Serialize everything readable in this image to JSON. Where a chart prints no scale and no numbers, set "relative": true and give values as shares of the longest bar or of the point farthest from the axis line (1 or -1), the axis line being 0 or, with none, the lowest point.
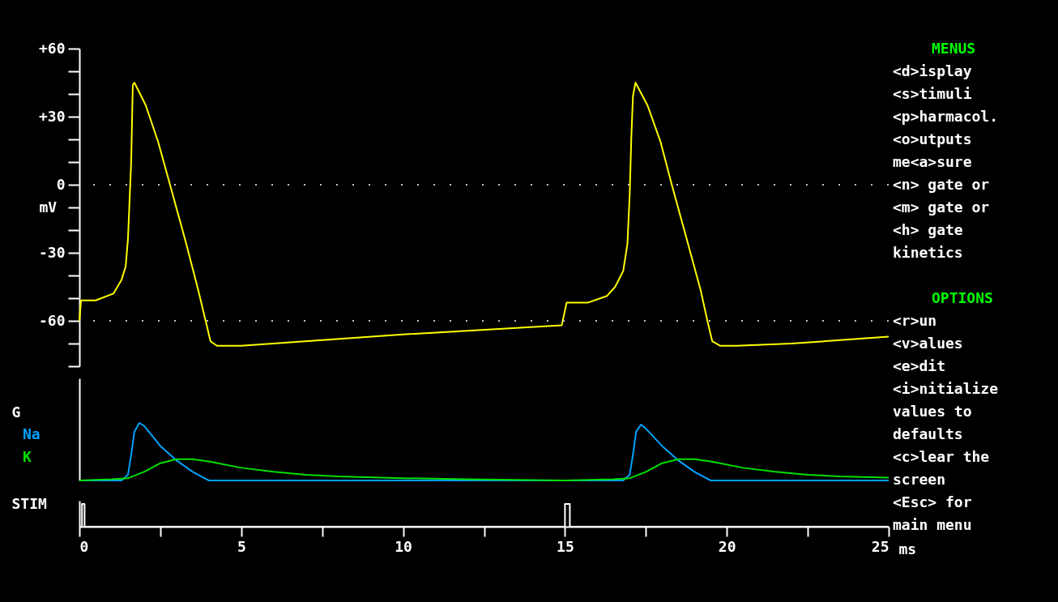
{
  "chart_data": [
    {
      "type": "line",
      "ylabel": "mV",
      "xlim": [
        0,
        25
      ],
      "ylim": [
        -80,
        60
      ],
      "tick_labels": "y",
      "grid": false,
      "marker": "none",
      "yticks": [
        {
          "value": 60,
          "label": "+60"
        },
        {
          "value": 50,
          "label": null
        },
        {
          "value": 40,
          "label": null
        },
        {
          "value": 30,
          "label": "+30"
        },
        {
          "value": 20,
          "label": null
        },
        {
          "value": 10,
          "label": null
        },
        0,
        {
          "value": -10,
          "label": null
        },
        {
          "value": -20,
          "label": null
        },
        -30,
        {
          "value": -40,
          "label": null
        },
        {
          "value": -50,
          "label": null
        },
        -60,
        {
          "value": -70,
          "label": null
        },
        {
          "value": -80,
          "label": null
        }
      ],
      "ref_lines": [
        {
          "axis": "y",
          "value": 0,
          "color": "#c0c0c0",
          "line_style": "dotted"
        },
        {
          "axis": "y",
          "value": -60,
          "color": "#c0c0c0",
          "line_style": "dotted"
        }
      ],
      "series": [
        {
          "color": "#ffff00",
          "x": [
            0,
            0.05,
            0.5,
            1.05,
            1.3,
            1.43,
            1.5,
            1.55,
            1.6,
            1.63,
            1.65,
            1.7,
            2.05,
            2.43,
            2.8,
            3.3,
            3.68,
            3.9,
            4.05,
            4.25,
            5,
            10,
            14.9,
            15.05,
            15.7,
            16.3,
            16.55,
            16.8,
            16.93,
            17.0,
            17.05,
            17.1,
            17.18,
            17.55,
            17.95,
            18.3,
            18.8,
            19.2,
            19.4,
            19.55,
            19.8,
            20.3,
            22,
            25
          ],
          "values": [
            -60,
            -51,
            -51,
            -48,
            -42,
            -36,
            -24,
            -7,
            10,
            31,
            44,
            45,
            35,
            19,
            0,
            -26,
            -47,
            -60,
            -69,
            -71,
            -71,
            -66,
            -62,
            -52,
            -52,
            -49,
            -45,
            -38,
            -26,
            -4,
            21,
            39,
            45,
            35,
            19,
            0,
            -26,
            -47,
            -60,
            -69,
            -71,
            -71,
            -70,
            -67
          ]
        }
      ]
    },
    {
      "type": "line",
      "ylabel": "G",
      "xlim": [
        0,
        25
      ],
      "relative": true,
      "tick_labels": false,
      "series": [
        {
          "name": "Na",
          "color": "#00a2ff",
          "x": [
            0,
            1.3,
            1.5,
            1.6,
            1.7,
            1.85,
            2.0,
            2.5,
            3.0,
            3.5,
            4.0,
            15,
            16.8,
            17.0,
            17.1,
            17.2,
            17.35,
            17.5,
            18.0,
            18.5,
            19.0,
            19.5,
            25
          ],
          "values": [
            0,
            0,
            0.1,
            0.45,
            0.85,
            1,
            0.95,
            0.6,
            0.35,
            0.15,
            0,
            0,
            0,
            0.1,
            0.45,
            0.85,
            0.97,
            0.9,
            0.6,
            0.35,
            0.15,
            0,
            0
          ]
        },
        {
          "name": "K",
          "color": "#00e000",
          "x": [
            0,
            1.0,
            1.5,
            2.0,
            2.5,
            3.0,
            3.5,
            4.0,
            5.0,
            6.0,
            7.0,
            8.0,
            10.0,
            12.0,
            15.0,
            16.5,
            17.0,
            17.5,
            18.0,
            18.5,
            19.0,
            19.5,
            20.5,
            21.5,
            22.5,
            23.5,
            25
          ],
          "values": [
            0,
            0.02,
            0.04,
            0.15,
            0.3,
            0.37,
            0.37,
            0.33,
            0.22,
            0.15,
            0.1,
            0.07,
            0.04,
            0.02,
            0,
            0.02,
            0.04,
            0.15,
            0.3,
            0.37,
            0.37,
            0.33,
            0.22,
            0.15,
            0.1,
            0.07,
            0.05
          ]
        }
      ]
    },
    {
      "type": "line",
      "ylabel": "STIM",
      "xlabel": "ms",
      "xlim": [
        0,
        25
      ],
      "relative": true,
      "tick_labels": "x",
      "xticks": [
        0,
        {
          "value": 2.5,
          "label": null
        },
        5,
        {
          "value": 7.5,
          "label": null
        },
        10,
        {
          "value": 12.5,
          "label": null
        },
        15,
        {
          "value": 17.5,
          "label": null
        },
        20,
        {
          "value": 22.5,
          "label": null
        },
        25
      ],
      "series": [
        {
          "color": "#ffffff",
          "x": [
            0,
            0.08,
            0.08,
            0.16,
            0.16,
            15,
            15,
            15.15,
            15.15,
            25
          ],
          "values": [
            0,
            0,
            1,
            1,
            0,
            0,
            1,
            1,
            0,
            0
          ]
        }
      ]
    },
    {
      "type": "other",
      "title": "MENUS",
      "annotations": [
        "<d>isplay",
        "<s>timuli",
        "<p>harmacol.",
        "<o>utputs",
        "me<a>sure",
        "<n> gate or",
        "<m> gate or",
        "<h> gate",
        "kinetics"
      ]
    },
    {
      "type": "other",
      "title": "OPTIONS",
      "annotations": [
        "<r>un",
        "<v>alues",
        "<e>dit",
        "<i>nitialize",
        "values to",
        "defaults",
        "<c>lear the",
        "screen",
        "<Esc> for",
        "main menu"
      ]
    }
  ]
}
